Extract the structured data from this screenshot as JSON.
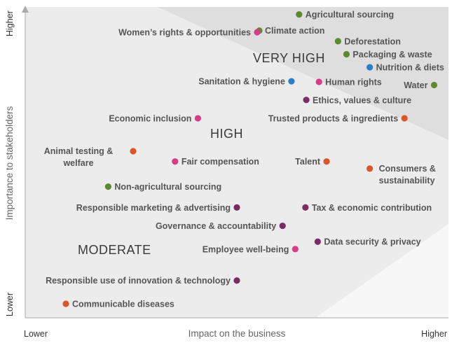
{
  "chart_data": {
    "type": "scatter",
    "title": "",
    "xlabel": "Impact on the business",
    "ylabel": "Importance to stakeholders",
    "x_ends": {
      "low": "Lower",
      "high": "Higher"
    },
    "y_ends": {
      "low": "Lower",
      "high": "Higher"
    },
    "xlim": [
      0,
      100
    ],
    "ylim": [
      0,
      100
    ],
    "grid": false,
    "zones": [
      {
        "name": "MODERATE",
        "color": "#f7f7f7"
      },
      {
        "name": "HIGH",
        "color": "#ececec"
      },
      {
        "name": "VERY HIGH",
        "color": "#dedede"
      }
    ],
    "colors": {
      "green": "#5e8a2e",
      "magenta": "#d63d86",
      "purple": "#7a2d63",
      "orange": "#d9562b",
      "blue": "#2b7fc4"
    },
    "points": [
      {
        "label": "Agricultural sourcing",
        "x": 64.7,
        "y": 97.6,
        "color": "green"
      },
      {
        "label": "Climate action",
        "x": 55.3,
        "y": 92.4,
        "color": "green"
      },
      {
        "label": "Women’s rights & opportunities",
        "x": 54.8,
        "y": 91.9,
        "color": "magenta"
      },
      {
        "label": "Deforestation",
        "x": 73.9,
        "y": 89.0,
        "color": "green"
      },
      {
        "label": "Packaging & waste",
        "x": 75.9,
        "y": 84.8,
        "color": "green"
      },
      {
        "label": "Nutrition & diets",
        "x": 81.4,
        "y": 80.6,
        "color": "blue"
      },
      {
        "label": "Sanitation & hygiene",
        "x": 62.9,
        "y": 76.1,
        "color": "blue"
      },
      {
        "label": "Human rights",
        "x": 69.4,
        "y": 75.9,
        "color": "magenta"
      },
      {
        "label": "Water",
        "x": 96.6,
        "y": 74.9,
        "color": "green"
      },
      {
        "label": "Ethics, values & culture",
        "x": 66.4,
        "y": 70.1,
        "color": "purple"
      },
      {
        "label": "Economic inclusion",
        "x": 40.8,
        "y": 64.2,
        "color": "magenta"
      },
      {
        "label": "Trusted products & ingredients",
        "x": 89.6,
        "y": 64.2,
        "color": "orange"
      },
      {
        "label": "Animal testing & welfare",
        "x": 25.5,
        "y": 53.6,
        "color": "orange"
      },
      {
        "label": "Fair compensation",
        "x": 35.4,
        "y": 50.3,
        "color": "magenta"
      },
      {
        "label": "Talent",
        "x": 71.2,
        "y": 50.3,
        "color": "orange"
      },
      {
        "label": "Consumers & sustainability",
        "x": 81.4,
        "y": 48.0,
        "color": "orange"
      },
      {
        "label": "Non-agricultural sourcing",
        "x": 19.6,
        "y": 42.2,
        "color": "green"
      },
      {
        "label": "Responsible marketing & advertising",
        "x": 50.0,
        "y": 35.5,
        "color": "purple"
      },
      {
        "label": "Tax & economic contribution",
        "x": 66.2,
        "y": 35.5,
        "color": "purple"
      },
      {
        "label": "Governance & accountability",
        "x": 60.8,
        "y": 29.6,
        "color": "purple"
      },
      {
        "label": "Data security & privacy",
        "x": 69.1,
        "y": 24.5,
        "color": "purple"
      },
      {
        "label": "Employee well-being",
        "x": 63.8,
        "y": 22.1,
        "color": "magenta"
      },
      {
        "label": "Responsible use of innovation & technology",
        "x": 50.0,
        "y": 12.0,
        "color": "purple"
      },
      {
        "label": "Communicable diseases",
        "x": 9.6,
        "y": 4.5,
        "color": "orange"
      }
    ]
  }
}
